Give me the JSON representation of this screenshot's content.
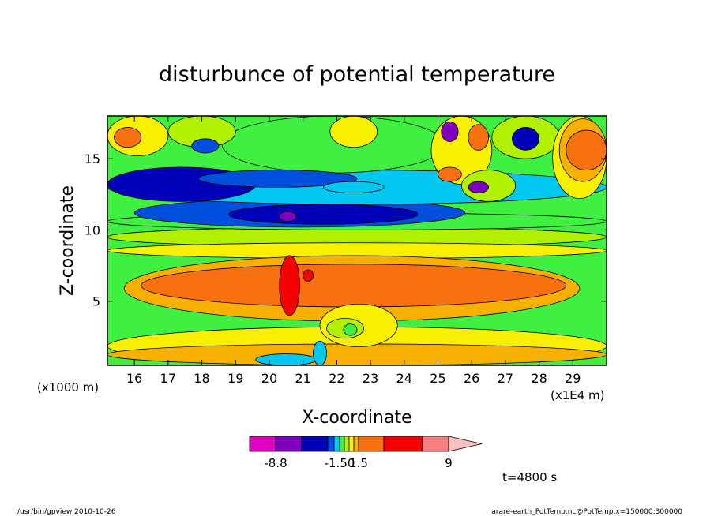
{
  "chart_data": {
    "type": "heatmap",
    "title": "disturbunce of potential temperature",
    "xlabel": "X-coordinate",
    "ylabel": "Z-coordinate",
    "x_unit": "(x1E4 m)",
    "y_unit": "(x1000 m)",
    "xlim": [
      15.2,
      30.0
    ],
    "ylim": [
      0.5,
      18.0
    ],
    "x_ticks": [
      16,
      17,
      18,
      19,
      20,
      21,
      22,
      23,
      24,
      25,
      26,
      27,
      28,
      29
    ],
    "y_ticks": [
      5,
      10,
      15
    ],
    "time_label": "t=4800 s",
    "colorbar": {
      "colors": [
        "#e000c0",
        "#8000c0",
        "#0000b8",
        "#0050e0",
        "#00c8f0",
        "#40f040",
        "#b0f000",
        "#f8f000",
        "#f8b000",
        "#f87010",
        "#f80000",
        "#f88080",
        "#f8c0c0"
      ],
      "labels": [
        "-8.8",
        "-1.50",
        "1.5",
        "9"
      ]
    },
    "regions": [
      {
        "v": 2,
        "x": [
          15.2,
          30.0
        ],
        "y": [
          0.5,
          3.2
        ]
      },
      {
        "v": 3,
        "x": [
          15.2,
          30.0
        ],
        "y": [
          0.5,
          2.0
        ]
      },
      {
        "v": -1,
        "x": [
          19.6,
          21.4
        ],
        "y": [
          0.5,
          1.3
        ]
      },
      {
        "v": 1,
        "x": [
          15.2,
          30.0
        ],
        "y": [
          8.8,
          10.2
        ]
      },
      {
        "v": 2,
        "x": [
          15.2,
          30.0
        ],
        "y": [
          8.0,
          9.1
        ]
      },
      {
        "v": 3,
        "x": [
          15.7,
          29.2
        ],
        "y": [
          3.6,
          8.2
        ]
      },
      {
        "v": 4,
        "x": [
          16.2,
          28.8
        ],
        "y": [
          4.6,
          7.6
        ]
      },
      {
        "v": 5,
        "x": [
          20.3,
          20.9
        ],
        "y": [
          4.0,
          8.2
        ]
      },
      {
        "v": 5,
        "x": [
          21.0,
          21.3
        ],
        "y": [
          6.4,
          7.2
        ]
      },
      {
        "v": 2,
        "x": [
          21.5,
          23.8
        ],
        "y": [
          1.8,
          4.8
        ]
      },
      {
        "v": 1,
        "x": [
          21.7,
          22.8
        ],
        "y": [
          2.4,
          3.8
        ]
      },
      {
        "v": 0,
        "x": [
          22.2,
          22.6
        ],
        "y": [
          2.6,
          3.4
        ]
      },
      {
        "v": -1,
        "x": [
          21.3,
          21.7
        ],
        "y": [
          0.5,
          2.2
        ]
      },
      {
        "v": 0,
        "x": [
          15.2,
          30.0
        ],
        "y": [
          10.0,
          11.2
        ]
      },
      {
        "v": -2,
        "x": [
          16.0,
          25.8
        ],
        "y": [
          10.2,
          12.2
        ]
      },
      {
        "v": -3,
        "x": [
          18.8,
          24.4
        ],
        "y": [
          10.4,
          11.8
        ]
      },
      {
        "v": -4,
        "x": [
          20.3,
          20.8
        ],
        "y": [
          10.6,
          11.3
        ]
      },
      {
        "v": -1,
        "x": [
          15.2,
          30.0
        ],
        "y": [
          11.8,
          14.2
        ]
      },
      {
        "v": -3,
        "x": [
          15.2,
          19.6
        ],
        "y": [
          12.0,
          14.4
        ]
      },
      {
        "v": 0,
        "x": [
          18.6,
          25.2
        ],
        "y": [
          14.0,
          18.0
        ]
      },
      {
        "v": -2,
        "x": [
          17.9,
          22.6
        ],
        "y": [
          13.0,
          14.2
        ]
      },
      {
        "v": 2,
        "x": [
          15.2,
          17.0
        ],
        "y": [
          15.2,
          18.0
        ]
      },
      {
        "v": 4,
        "x": [
          15.4,
          16.2
        ],
        "y": [
          15.8,
          17.2
        ]
      },
      {
        "v": 1,
        "x": [
          17.0,
          19.0
        ],
        "y": [
          15.8,
          18.0
        ]
      },
      {
        "v": -2,
        "x": [
          17.7,
          18.5
        ],
        "y": [
          15.4,
          16.4
        ]
      },
      {
        "v": 2,
        "x": [
          21.8,
          23.2
        ],
        "y": [
          15.8,
          18.0
        ]
      },
      {
        "v": -1,
        "x": [
          21.6,
          23.4
        ],
        "y": [
          12.6,
          13.4
        ]
      },
      {
        "v": 2,
        "x": [
          24.8,
          26.6
        ],
        "y": [
          13.2,
          18.0
        ]
      },
      {
        "v": -4,
        "x": [
          25.1,
          25.6
        ],
        "y": [
          16.2,
          17.6
        ]
      },
      {
        "v": 4,
        "x": [
          25.9,
          26.5
        ],
        "y": [
          15.6,
          17.4
        ]
      },
      {
        "v": 4,
        "x": [
          25.0,
          25.7
        ],
        "y": [
          13.4,
          14.4
        ]
      },
      {
        "v": 1,
        "x": [
          26.6,
          28.6
        ],
        "y": [
          15.0,
          18.0
        ]
      },
      {
        "v": -3,
        "x": [
          27.2,
          28.0
        ],
        "y": [
          15.6,
          17.2
        ]
      },
      {
        "v": 1,
        "x": [
          25.7,
          27.3
        ],
        "y": [
          12.0,
          14.2
        ]
      },
      {
        "v": -4,
        "x": [
          25.9,
          26.5
        ],
        "y": [
          12.6,
          13.4
        ]
      },
      {
        "v": 2,
        "x": [
          28.4,
          30.0
        ],
        "y": [
          12.2,
          18.0
        ]
      },
      {
        "v": 3,
        "x": [
          28.6,
          30.0
        ],
        "y": [
          13.4,
          17.8
        ]
      },
      {
        "v": 4,
        "x": [
          28.8,
          30.0
        ],
        "y": [
          14.2,
          17.0
        ]
      }
    ]
  },
  "footer": {
    "left": "/usr/bin/gpview   2010-10-26",
    "right": "arare-earth_PotTemp.nc@PotTemp,x=150000:300000"
  }
}
